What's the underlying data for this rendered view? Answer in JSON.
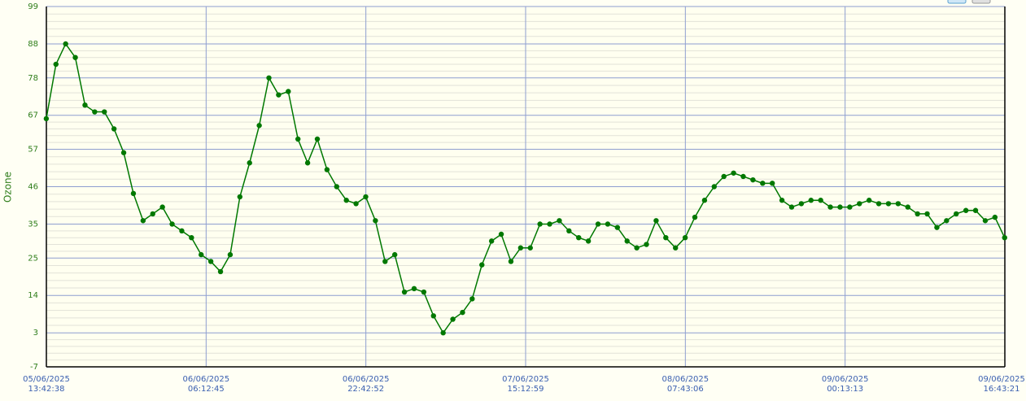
{
  "chart_data": {
    "type": "line",
    "y_label": "Ozone",
    "color": "#007800",
    "grid": true,
    "minor_grid_per_major": 5,
    "x": [
      "2025-06-05T13:42",
      "2025-06-05T14:42",
      "2025-06-05T15:42",
      "2025-06-05T16:42",
      "2025-06-05T17:42",
      "2025-06-05T18:42",
      "2025-06-05T19:42",
      "2025-06-05T20:42",
      "2025-06-05T21:42",
      "2025-06-05T22:42",
      "2025-06-05T23:42",
      "2025-06-06T00:42",
      "2025-06-06T01:42",
      "2025-06-06T02:42",
      "2025-06-06T03:42",
      "2025-06-06T04:42",
      "2025-06-06T05:42",
      "2025-06-06T06:42",
      "2025-06-06T07:42",
      "2025-06-06T08:42",
      "2025-06-06T09:42",
      "2025-06-06T10:42",
      "2025-06-06T11:42",
      "2025-06-06T12:42",
      "2025-06-06T13:42",
      "2025-06-06T14:42",
      "2025-06-06T15:42",
      "2025-06-06T16:42",
      "2025-06-06T17:42",
      "2025-06-06T18:42",
      "2025-06-06T19:42",
      "2025-06-06T20:42",
      "2025-06-06T21:42",
      "2025-06-06T22:42",
      "2025-06-06T23:42",
      "2025-06-07T00:42",
      "2025-06-07T01:42",
      "2025-06-07T02:42",
      "2025-06-07T03:42",
      "2025-06-07T04:42",
      "2025-06-07T05:42",
      "2025-06-07T06:42",
      "2025-06-07T07:42",
      "2025-06-07T08:42",
      "2025-06-07T09:42",
      "2025-06-07T10:42",
      "2025-06-07T11:42",
      "2025-06-07T12:42",
      "2025-06-07T13:42",
      "2025-06-07T14:42",
      "2025-06-07T15:42",
      "2025-06-07T16:42",
      "2025-06-07T17:42",
      "2025-06-07T18:42",
      "2025-06-07T19:42",
      "2025-06-07T20:42",
      "2025-06-07T21:42",
      "2025-06-07T22:42",
      "2025-06-07T23:42",
      "2025-06-08T00:42",
      "2025-06-08T01:42",
      "2025-06-08T02:42",
      "2025-06-08T03:42",
      "2025-06-08T04:42",
      "2025-06-08T05:42",
      "2025-06-08T06:42",
      "2025-06-08T07:42",
      "2025-06-08T08:42",
      "2025-06-08T09:42",
      "2025-06-08T10:42",
      "2025-06-08T11:42",
      "2025-06-08T12:42",
      "2025-06-08T13:42",
      "2025-06-08T14:42",
      "2025-06-08T15:42",
      "2025-06-08T16:42",
      "2025-06-08T17:42",
      "2025-06-08T18:42",
      "2025-06-08T19:42",
      "2025-06-08T20:42",
      "2025-06-08T21:42",
      "2025-06-08T22:42",
      "2025-06-08T23:42",
      "2025-06-09T00:42",
      "2025-06-09T01:42",
      "2025-06-09T02:42",
      "2025-06-09T03:42",
      "2025-06-09T04:42",
      "2025-06-09T05:42",
      "2025-06-09T06:42",
      "2025-06-09T07:42",
      "2025-06-09T08:42",
      "2025-06-09T09:42",
      "2025-06-09T10:42",
      "2025-06-09T11:42",
      "2025-06-09T12:42",
      "2025-06-09T13:42",
      "2025-06-09T14:42",
      "2025-06-09T15:42",
      "2025-06-09T16:42"
    ],
    "values": [
      66,
      82,
      88,
      84,
      70,
      68,
      68,
      63,
      56,
      44,
      36,
      38,
      40,
      35,
      33,
      31,
      26,
      24,
      21,
      26,
      43,
      53,
      64,
      78,
      73,
      74,
      60,
      53,
      60,
      51,
      46,
      42,
      41,
      43,
      36,
      24,
      26,
      15,
      16,
      15,
      8,
      3,
      7,
      9,
      13,
      23,
      30,
      32,
      24,
      28,
      28,
      35,
      35,
      36,
      33,
      31,
      30,
      35,
      35,
      34,
      30,
      28,
      29,
      36,
      31,
      28,
      31,
      37,
      42,
      46,
      49,
      50,
      49,
      48,
      47,
      47,
      42,
      40,
      41,
      42,
      42,
      40,
      40,
      40,
      41,
      42,
      41,
      41,
      41,
      40,
      38,
      38,
      34,
      36,
      38,
      39,
      39,
      36,
      37,
      31
    ],
    "xlim": [
      "2025-06-05T13:42:38",
      "2025-06-09T16:43:21"
    ],
    "xticks": [
      {
        "value": "2025-06-05T13:42:38",
        "label": "05/06/2025\n13:42:38"
      },
      {
        "value": "2025-06-06T06:12:45",
        "label": "06/06/2025\n06:12:45"
      },
      {
        "value": "2025-06-06T22:42:52",
        "label": "06/06/2025\n22:42:52"
      },
      {
        "value": "2025-06-07T15:12:59",
        "label": "07/06/2025\n15:12:59"
      },
      {
        "value": "2025-06-08T07:43:06",
        "label": "08/06/2025\n07:43:06"
      },
      {
        "value": "2025-06-09T00:13:13",
        "label": "09/06/2025\n00:13:13"
      },
      {
        "value": "2025-06-09T16:43:21",
        "label": "09/06/2025\n16:43:21"
      }
    ],
    "ylim": [
      -7,
      99
    ],
    "yticks": [
      -7,
      3,
      14,
      25,
      35,
      46,
      57,
      67,
      78,
      88,
      99
    ]
  }
}
